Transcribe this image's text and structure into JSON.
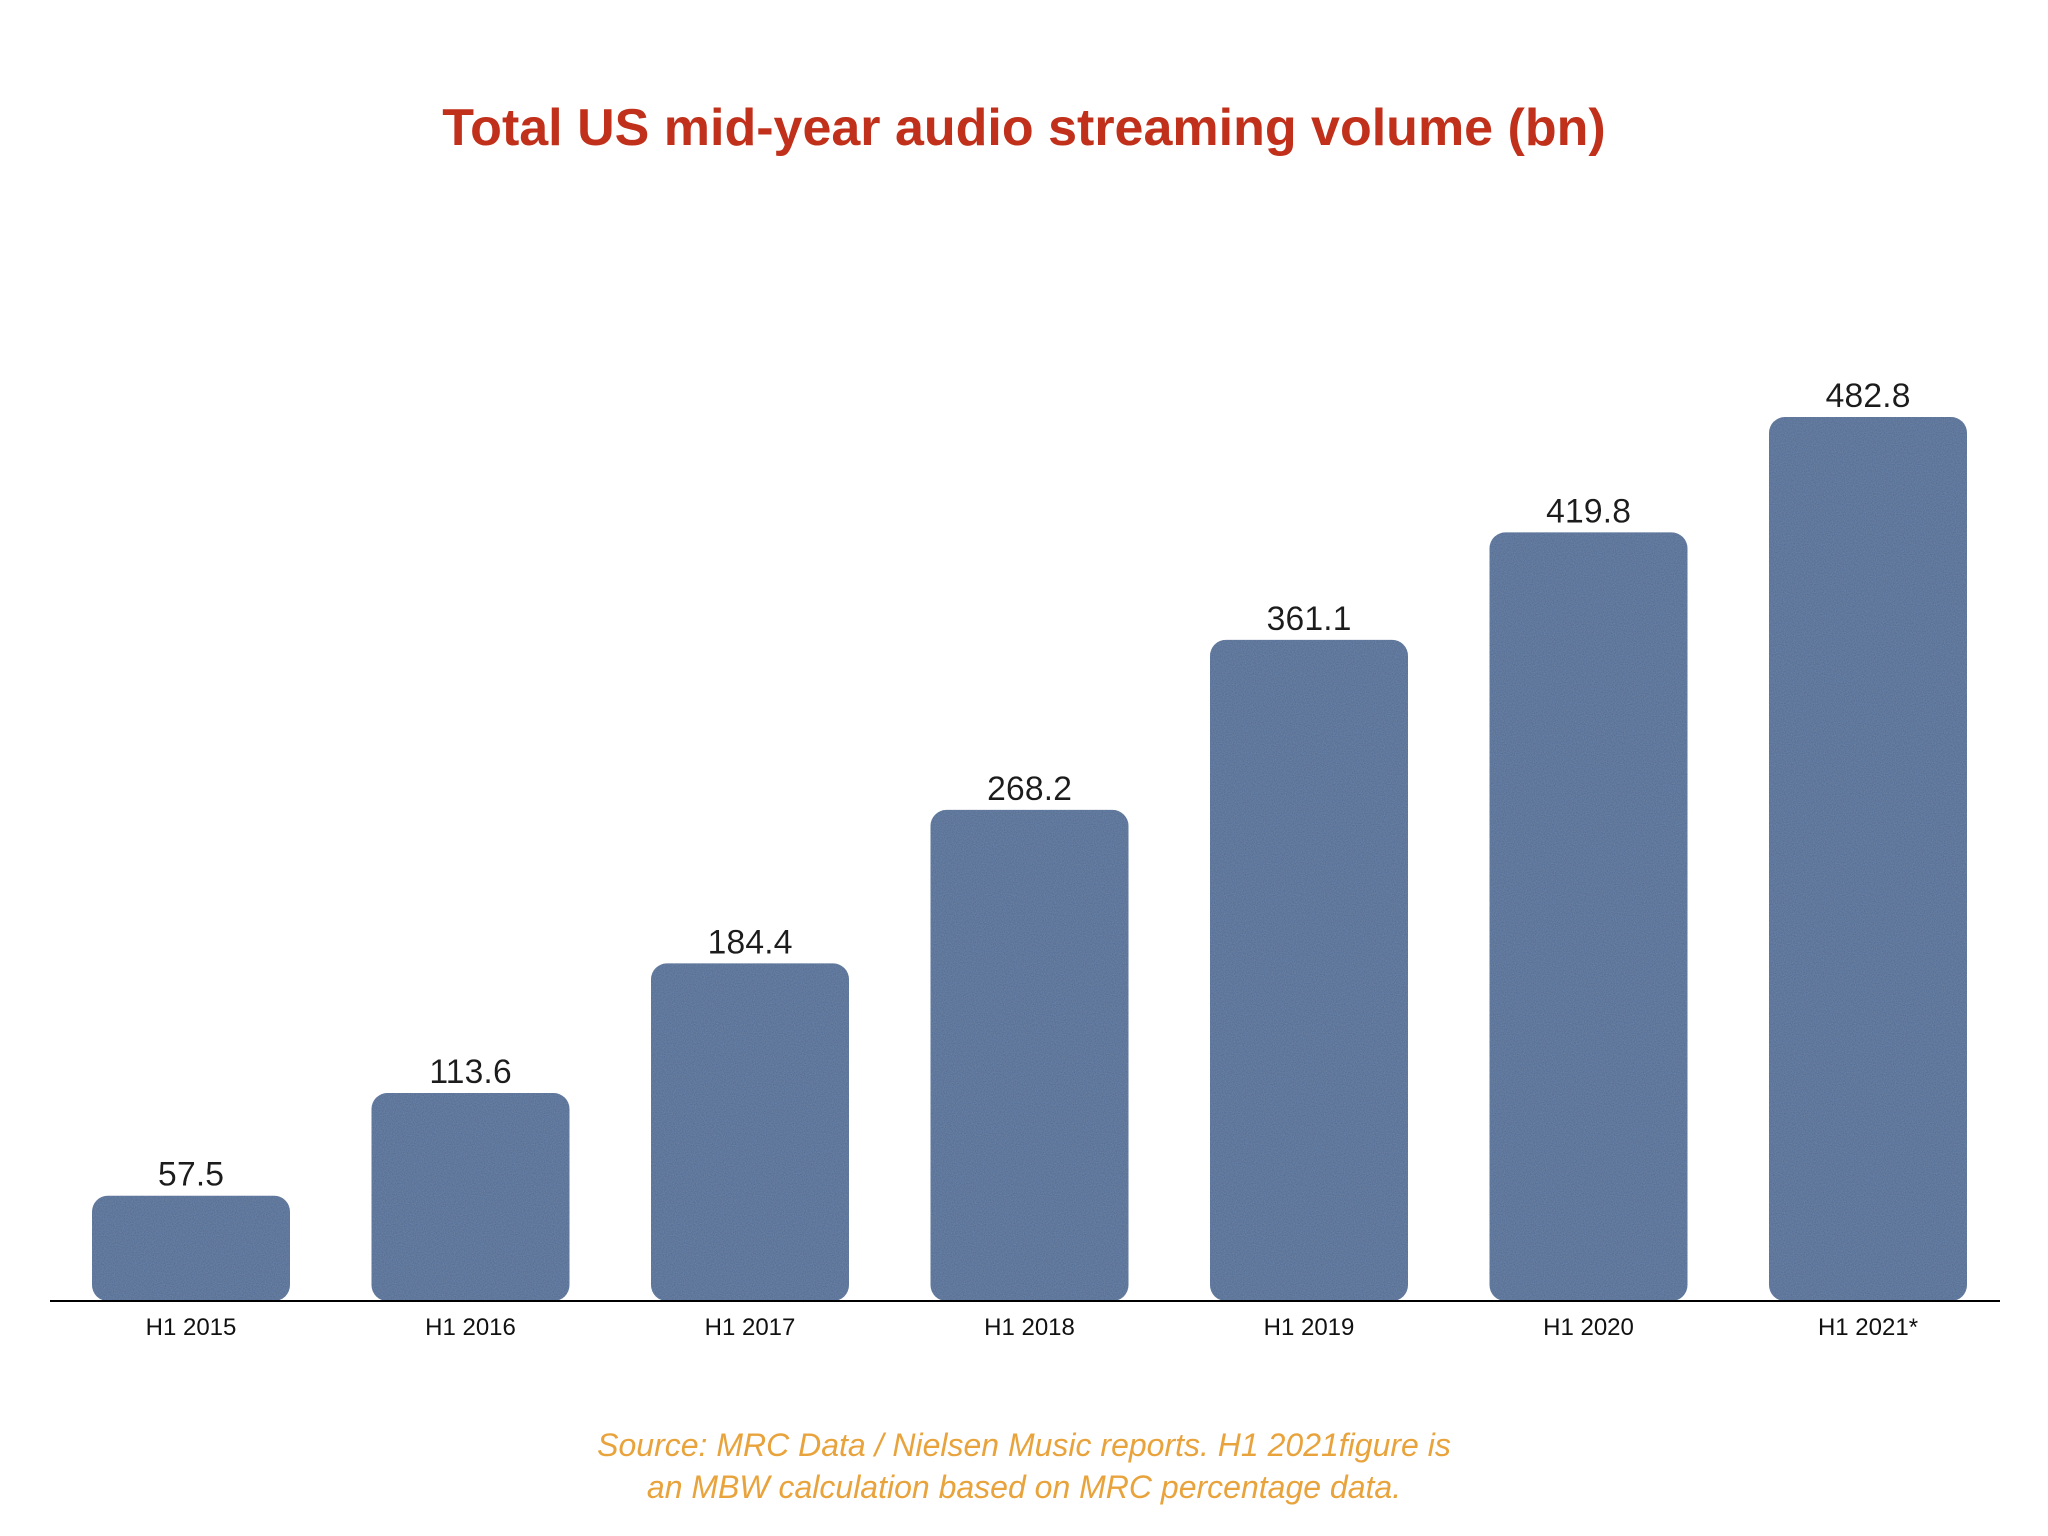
{
  "chart_data": {
    "type": "bar",
    "title": "Total US mid-year audio streaming volume (bn)",
    "categories": [
      "H1 2015",
      "H1 2016",
      "H1 2017",
      "H1 2018",
      "H1 2019",
      "H1 2020",
      "H1 2021*"
    ],
    "values": [
      57.5,
      113.6,
      184.4,
      268.2,
      361.1,
      419.8,
      482.8
    ],
    "value_labels": [
      "57.5",
      "113.6",
      "184.4",
      "268.2",
      "361.1",
      "419.8",
      "482.8"
    ],
    "xlabel": "",
    "ylabel": "",
    "ylim": [
      0,
      482.8
    ],
    "grid": false,
    "legend": "none",
    "bar_color": "#4a6793",
    "title_color": "#c0301b"
  },
  "footnote": {
    "line1": "Source: MRC Data / Nielsen Music reports. H1 2021figure is",
    "line2": "an MBW calculation based on MRC percentage data.",
    "color": "#e8a33c"
  }
}
